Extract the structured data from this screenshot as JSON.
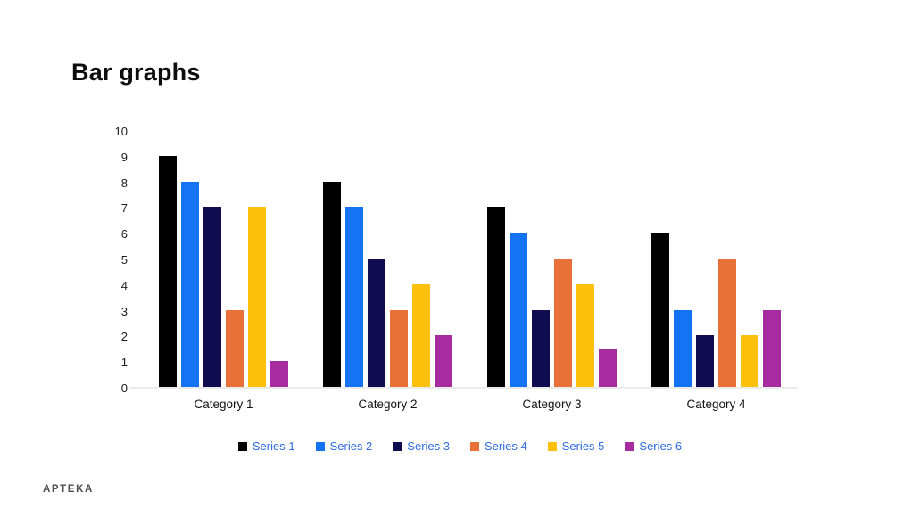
{
  "slide": {
    "title": "Bar graphs",
    "footer_logo": "APTEKA"
  },
  "colors": {
    "background": "#ffffff",
    "title_text": "#0d0d0d",
    "axis_text": "#1a1a1a",
    "baseline": "#ebebeb",
    "legend_text": "#2e6ce2",
    "logo_text": "#4d4d4d"
  },
  "chart_data": {
    "type": "bar",
    "title": "Bar graphs",
    "xlabel": "",
    "ylabel": "",
    "categories": [
      "Category 1",
      "Category 2",
      "Category 3",
      "Category 4"
    ],
    "series": [
      {
        "name": "Series 1",
        "color": "#000000",
        "values": [
          9,
          8,
          7,
          6
        ]
      },
      {
        "name": "Series 2",
        "color": "#1473f3",
        "values": [
          8,
          7,
          6,
          3
        ]
      },
      {
        "name": "Series 3",
        "color": "#0f0c4f",
        "values": [
          7,
          5,
          3,
          2
        ]
      },
      {
        "name": "Series 4",
        "color": "#e8713a",
        "values": [
          3,
          3,
          5,
          5
        ]
      },
      {
        "name": "Series 5",
        "color": "#fdc10c",
        "values": [
          7,
          4,
          4,
          2
        ]
      },
      {
        "name": "Series 6",
        "color": "#a62ca0",
        "values": [
          1,
          2,
          1.5,
          3
        ]
      }
    ],
    "ylim": [
      0,
      10
    ],
    "yticks": [
      0,
      1,
      2,
      3,
      4,
      5,
      6,
      7,
      8,
      9,
      10
    ],
    "grid": false,
    "legend_position": "bottom"
  }
}
